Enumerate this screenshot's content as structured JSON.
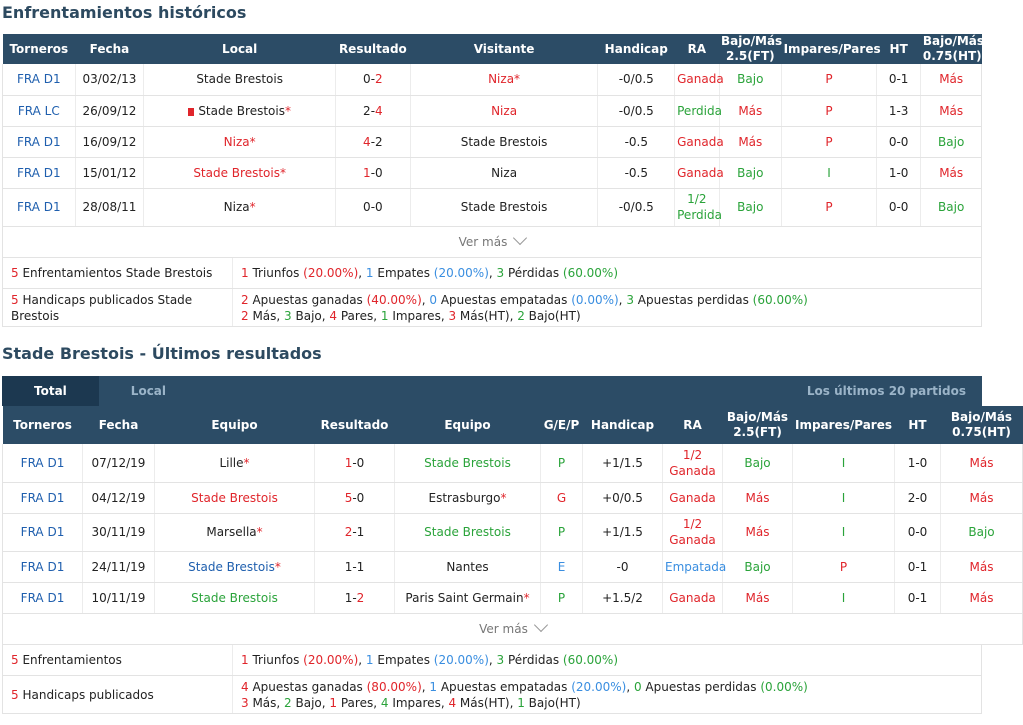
{
  "h2h": {
    "title": "Enfrentamientos históricos",
    "headers": [
      "Torneros",
      "Fecha",
      "Local",
      "Resultado",
      "Visitante",
      "Handicap",
      "RA",
      "Bajo/Más 2.5(FT)",
      "Impares/Pares",
      "HT",
      "Bajo/Más 0.75(HT)"
    ],
    "rows": [
      {
        "league": "FRA D1",
        "date": "03/02/13",
        "home": "Stade Brestois",
        "home_star": "",
        "home_cls": "dark",
        "flag": false,
        "s1": "0",
        "s2": "2",
        "s1c": "dark",
        "s2c": "red",
        "away": "Niza",
        "away_star": "*",
        "away_cls": "red",
        "hcp": "-0/0.5",
        "ra": "Ganada",
        "ra2": "",
        "ra_cls": "red",
        "ou": "Bajo",
        "ou_cls": "green",
        "oe": "P",
        "oe_cls": "red",
        "ht": "0-1",
        "htou": "Más",
        "htou_cls": "red"
      },
      {
        "league": "FRA LC",
        "date": "26/09/12",
        "home": "Stade Brestois",
        "home_star": "*",
        "home_cls": "dark",
        "flag": true,
        "s1": "2",
        "s2": "4",
        "s1c": "dark",
        "s2c": "red",
        "away": "Niza",
        "away_star": "",
        "away_cls": "red",
        "hcp": "-0/0.5",
        "ra": "Perdida",
        "ra2": "",
        "ra_cls": "green",
        "ou": "Más",
        "ou_cls": "red",
        "oe": "P",
        "oe_cls": "red",
        "ht": "1-3",
        "htou": "Más",
        "htou_cls": "red"
      },
      {
        "league": "FRA D1",
        "date": "16/09/12",
        "home": "Niza",
        "home_star": "*",
        "home_cls": "red",
        "flag": false,
        "s1": "4",
        "s2": "2",
        "s1c": "red",
        "s2c": "dark",
        "away": "Stade Brestois",
        "away_star": "",
        "away_cls": "dark",
        "hcp": "-0.5",
        "ra": "Ganada",
        "ra2": "",
        "ra_cls": "red",
        "ou": "Más",
        "ou_cls": "red",
        "oe": "P",
        "oe_cls": "red",
        "ht": "0-0",
        "htou": "Bajo",
        "htou_cls": "green"
      },
      {
        "league": "FRA D1",
        "date": "15/01/12",
        "home": "Stade Brestois",
        "home_star": "*",
        "home_cls": "red",
        "flag": false,
        "s1": "1",
        "s2": "0",
        "s1c": "red",
        "s2c": "dark",
        "away": "Niza",
        "away_star": "",
        "away_cls": "dark",
        "hcp": "-0.5",
        "ra": "Ganada",
        "ra2": "",
        "ra_cls": "red",
        "ou": "Bajo",
        "ou_cls": "green",
        "oe": "I",
        "oe_cls": "green",
        "ht": "1-0",
        "htou": "Más",
        "htou_cls": "red"
      },
      {
        "league": "FRA D1",
        "date": "28/08/11",
        "home": "Niza",
        "home_star": "*",
        "home_cls": "dark",
        "flag": false,
        "s1": "0",
        "s2": "0",
        "s1c": "dark",
        "s2c": "dark",
        "away": "Stade Brestois",
        "away_star": "",
        "away_cls": "dark",
        "hcp": "-0/0.5",
        "ra": "1/2",
        "ra2": "Perdida",
        "ra_cls": "green",
        "ou": "Bajo",
        "ou_cls": "green",
        "oe": "P",
        "oe_cls": "red",
        "ht": "0-0",
        "htou": "Bajo",
        "htou_cls": "green"
      }
    ],
    "more": "Ver más",
    "summary": {
      "label1": "5 Enfrentamientos Stade Brestois",
      "label2": "5 Handicaps publicados Stade Brestois",
      "l1": [
        [
          "1",
          "red"
        ],
        [
          " Triunfos ",
          ""
        ],
        [
          "(20.00%)",
          "red"
        ],
        [
          ", ",
          ""
        ],
        [
          "1",
          "lblue"
        ],
        [
          " Empates ",
          ""
        ],
        [
          "(20.00%)",
          "lblue"
        ],
        [
          ", ",
          ""
        ],
        [
          "3",
          "green"
        ],
        [
          " Pérdidas ",
          ""
        ],
        [
          "(60.00%)",
          "green"
        ]
      ],
      "l2": [
        [
          "2",
          "red"
        ],
        [
          " Apuestas ganadas ",
          ""
        ],
        [
          "(40.00%)",
          "red"
        ],
        [
          ", ",
          ""
        ],
        [
          "0",
          "lblue"
        ],
        [
          " Apuestas empatadas ",
          ""
        ],
        [
          "(0.00%)",
          "lblue"
        ],
        [
          ", ",
          ""
        ],
        [
          "3",
          "green"
        ],
        [
          " Apuestas perdidas ",
          ""
        ],
        [
          "(60.00%)",
          "green"
        ]
      ],
      "l3": [
        [
          "2",
          "red"
        ],
        [
          " Más, ",
          ""
        ],
        [
          "3",
          "green"
        ],
        [
          " Bajo, ",
          ""
        ],
        [
          "4",
          "red"
        ],
        [
          " Pares, ",
          ""
        ],
        [
          "1",
          "green"
        ],
        [
          " Impares, ",
          ""
        ],
        [
          "3",
          "red"
        ],
        [
          " Más(HT), ",
          ""
        ],
        [
          "2",
          "green"
        ],
        [
          " Bajo(HT)",
          ""
        ]
      ]
    }
  },
  "recent": {
    "title": "Stade Brestois - Últimos resultados",
    "tabs": [
      "Total",
      "Local"
    ],
    "tab_right": "Los últimos 20 partidos",
    "headers": [
      "Torneros",
      "Fecha",
      "Equipo",
      "Resultado",
      "Equipo",
      "G/E/P",
      "Handicap",
      "RA",
      "Bajo/Más 2.5(FT)",
      "Impares/Pares",
      "HT",
      "Bajo/Más 0.75(HT)"
    ],
    "rows": [
      {
        "league": "FRA D1",
        "date": "07/12/19",
        "home": "Lille",
        "home_star": "*",
        "home_cls": "dark",
        "s1": "1",
        "s2": "0",
        "s1c": "red",
        "s2c": "dark",
        "away": "Stade Brestois",
        "away_star": "",
        "away_cls": "green",
        "gep": "P",
        "gep_cls": "green",
        "hcp": "+1/1.5",
        "ra": "1/2",
        "ra2": "Ganada",
        "ra_cls": "red",
        "ou": "Bajo",
        "ou_cls": "green",
        "oe": "I",
        "oe_cls": "green",
        "ht": "1-0",
        "htou": "Más",
        "htou_cls": "red"
      },
      {
        "league": "FRA D1",
        "date": "04/12/19",
        "home": "Stade Brestois",
        "home_star": "",
        "home_cls": "red",
        "s1": "5",
        "s2": "0",
        "s1c": "red",
        "s2c": "dark",
        "away": "Estrasburgo",
        "away_star": "*",
        "away_cls": "dark",
        "gep": "G",
        "gep_cls": "red",
        "hcp": "+0/0.5",
        "ra": "Ganada",
        "ra2": "",
        "ra_cls": "red",
        "ou": "Más",
        "ou_cls": "red",
        "oe": "I",
        "oe_cls": "green",
        "ht": "2-0",
        "htou": "Más",
        "htou_cls": "red"
      },
      {
        "league": "FRA D1",
        "date": "30/11/19",
        "home": "Marsella",
        "home_star": "*",
        "home_cls": "dark",
        "s1": "2",
        "s2": "1",
        "s1c": "red",
        "s2c": "dark",
        "away": "Stade Brestois",
        "away_star": "",
        "away_cls": "green",
        "gep": "P",
        "gep_cls": "green",
        "hcp": "+1/1.5",
        "ra": "1/2",
        "ra2": "Ganada",
        "ra_cls": "red",
        "ou": "Más",
        "ou_cls": "red",
        "oe": "I",
        "oe_cls": "green",
        "ht": "0-0",
        "htou": "Bajo",
        "htou_cls": "green"
      },
      {
        "league": "FRA D1",
        "date": "24/11/19",
        "home": "Stade Brestois",
        "home_star": "*",
        "home_cls": "blue",
        "s1": "1",
        "s2": "1",
        "s1c": "dark",
        "s2c": "dark",
        "away": "Nantes",
        "away_star": "",
        "away_cls": "dark",
        "gep": "E",
        "gep_cls": "lblue",
        "hcp": "-0",
        "ra": "Empatada",
        "ra2": "",
        "ra_cls": "lblue",
        "ou": "Bajo",
        "ou_cls": "green",
        "oe": "P",
        "oe_cls": "red",
        "ht": "0-1",
        "htou": "Más",
        "htou_cls": "red"
      },
      {
        "league": "FRA D1",
        "date": "10/11/19",
        "home": "Stade Brestois",
        "home_star": "",
        "home_cls": "green",
        "s1": "1",
        "s2": "2",
        "s1c": "dark",
        "s2c": "red",
        "away": "Paris Saint Germain",
        "away_star": "*",
        "away_cls": "dark",
        "gep": "P",
        "gep_cls": "green",
        "hcp": "+1.5/2",
        "ra": "Ganada",
        "ra2": "",
        "ra_cls": "red",
        "ou": "Más",
        "ou_cls": "red",
        "oe": "I",
        "oe_cls": "green",
        "ht": "0-1",
        "htou": "Más",
        "htou_cls": "red"
      }
    ],
    "more": "Ver más",
    "summary": {
      "label1": "5 Enfrentamientos",
      "label2": "5 Handicaps publicados",
      "l1": [
        [
          "1",
          "red"
        ],
        [
          " Triunfos ",
          ""
        ],
        [
          "(20.00%)",
          "red"
        ],
        [
          ", ",
          ""
        ],
        [
          "1",
          "lblue"
        ],
        [
          " Empates ",
          ""
        ],
        [
          "(20.00%)",
          "lblue"
        ],
        [
          ", ",
          ""
        ],
        [
          "3",
          "green"
        ],
        [
          " Pérdidas ",
          ""
        ],
        [
          "(60.00%)",
          "green"
        ]
      ],
      "l2": [
        [
          "4",
          "red"
        ],
        [
          " Apuestas ganadas ",
          ""
        ],
        [
          "(80.00%)",
          "red"
        ],
        [
          ", ",
          ""
        ],
        [
          "1",
          "lblue"
        ],
        [
          " Apuestas empatadas ",
          ""
        ],
        [
          "(20.00%)",
          "lblue"
        ],
        [
          ", ",
          ""
        ],
        [
          "0",
          "green"
        ],
        [
          " Apuestas perdidas ",
          ""
        ],
        [
          "(0.00%)",
          "green"
        ]
      ],
      "l3": [
        [
          "3",
          "red"
        ],
        [
          " Más, ",
          ""
        ],
        [
          "2",
          "green"
        ],
        [
          " Bajo, ",
          ""
        ],
        [
          "1",
          "red"
        ],
        [
          " Pares, ",
          ""
        ],
        [
          "4",
          "green"
        ],
        [
          " Impares, ",
          ""
        ],
        [
          "4",
          "red"
        ],
        [
          " Más(HT), ",
          ""
        ],
        [
          "1",
          "green"
        ],
        [
          " Bajo(HT)",
          ""
        ]
      ]
    }
  }
}
